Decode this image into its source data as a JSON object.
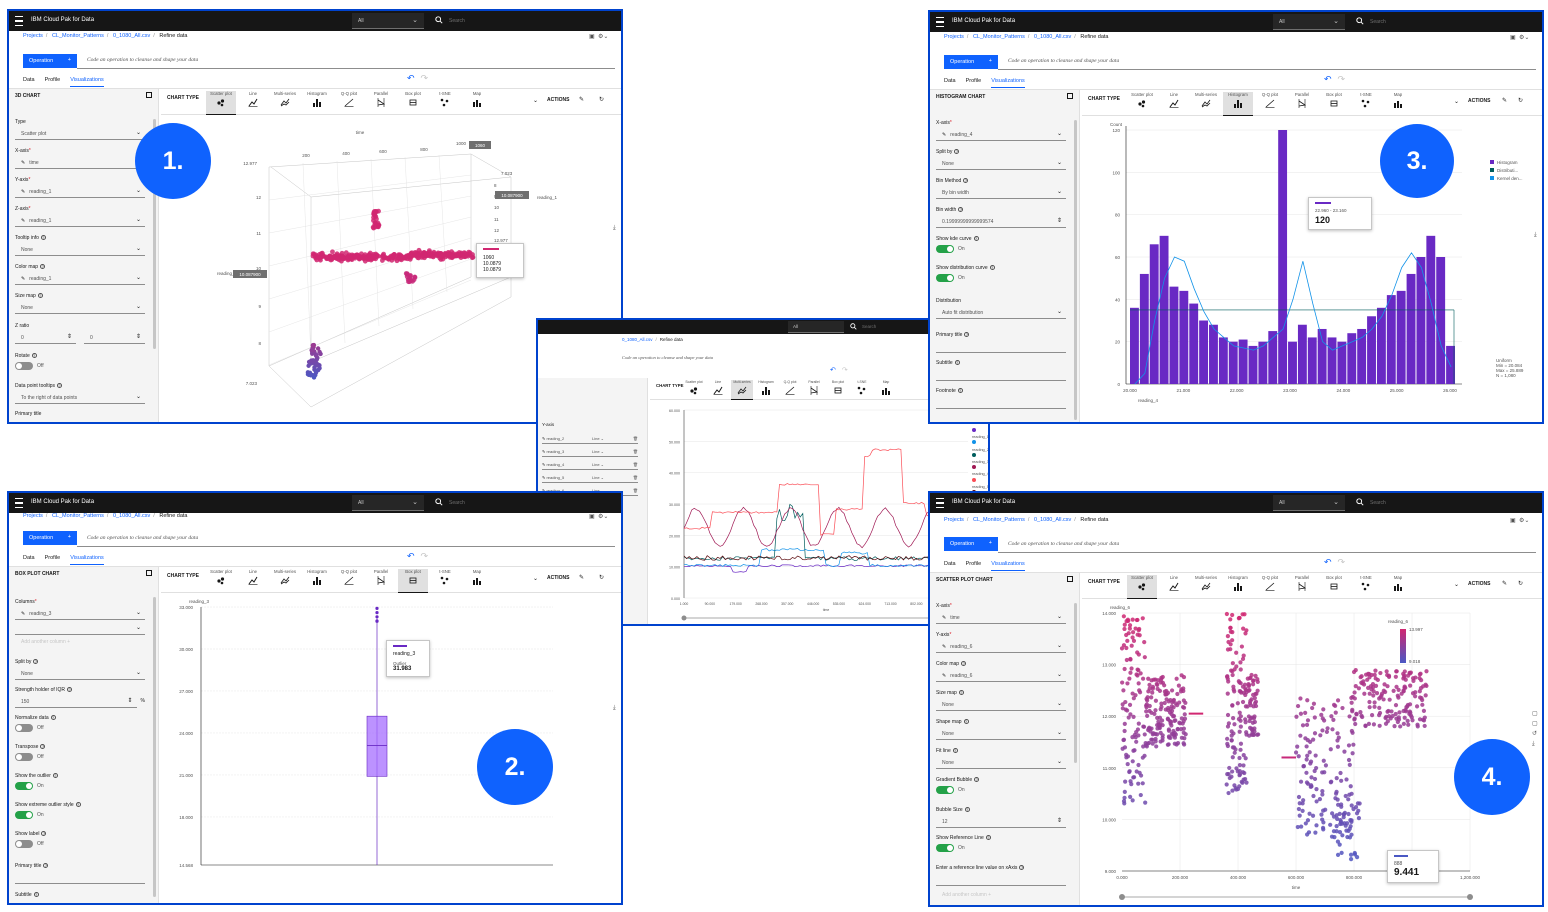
{
  "common": {
    "brand": "IBM Cloud Pak for Data",
    "search_scope": "All",
    "search_placeholder": "Search",
    "breadcrumb": [
      "Projects",
      "CL_Monitor_Patterns",
      "0_1080_All.csv",
      "Refine data"
    ],
    "operation_label": "Operation",
    "operation_plus": "+",
    "operation_hint": "Code an operation to cleanse and shape your data",
    "tabs": [
      "Data",
      "Profile",
      "Visualizations"
    ],
    "chart_type_label": "CHART TYPE",
    "actions_label": "ACTIONS",
    "chart_types": [
      "Scatter plot",
      "Line",
      "Multi-series",
      "Histogram",
      "Q-Q plot",
      "Parallel",
      "Box plot",
      "t-SNE",
      "Map"
    ],
    "toggle_on": "On",
    "toggle_off": "Off"
  },
  "colors": {
    "accent": "#0f62fe",
    "pink": "#d12771",
    "purple": "#6929c4",
    "toggle_on": "#24a148",
    "badge": "#0f62fe"
  },
  "panel1": {
    "title": "3D CHART",
    "badge": "1.",
    "fields": [
      {
        "label": "Type",
        "value": "Scatter plot",
        "kind": "select"
      },
      {
        "label": "X-axis",
        "req": true,
        "value": "time",
        "kind": "column"
      },
      {
        "label": "Y-axis",
        "req": true,
        "value": "reading_1",
        "kind": "column"
      },
      {
        "label": "Z-axis",
        "req": true,
        "value": "reading_1",
        "kind": "column"
      },
      {
        "label": "Tooltip info",
        "q": true,
        "value": "None",
        "kind": "select"
      },
      {
        "label": "Color map",
        "q": true,
        "value": "reading_1",
        "kind": "column"
      },
      {
        "label": "Size map",
        "q": true,
        "value": "None",
        "kind": "select"
      }
    ],
    "zratio_label": "Z ratio",
    "zratio": [
      "0",
      "0"
    ],
    "rotate_label": "Rotate",
    "rotate_state": "Off",
    "tooltips_label": "Data point tooltips",
    "tooltips_value": "To the right of data points",
    "primary_title_label": "Primary title",
    "axis_time": "time",
    "axis_reading_1": "reading_1",
    "axis_reading_1b": "reading_1",
    "x_ticks": [
      "200",
      "400",
      "600",
      "800",
      "1000"
    ],
    "y_ticks": [
      "12.977",
      "12",
      "11",
      "10",
      "9",
      "8",
      "7.023"
    ],
    "z_ticks": [
      "7.023",
      "8",
      "9",
      "10",
      "11",
      "12",
      "12.977"
    ],
    "hl_x": "1060",
    "hl_y": "10.087900",
    "hl_z": "10.087900",
    "tooltip": [
      "1060",
      "10.0879",
      "10.0879"
    ],
    "legend": [
      "12.9775",
      "10.0879",
      "7.0234"
    ]
  },
  "panel2": {
    "title": "BOX PLOT CHART",
    "badge": "2.",
    "columns_label": "Columns",
    "column_value": "reading_3",
    "add_column": "Add another column",
    "split_label": "Split by",
    "split_value": "None",
    "iqr_label": "Strength holder of IQR",
    "iqr_value": "150",
    "iqr_unit": "%",
    "toggles": [
      {
        "label": "Normalize data",
        "state": "Off"
      },
      {
        "label": "Transpose",
        "state": "Off"
      },
      {
        "label": "Show the outlier",
        "state": "On"
      },
      {
        "label": "Show extreme outlier style",
        "state": "On"
      },
      {
        "label": "Show label",
        "state": "Off"
      }
    ],
    "primary_title_label": "Primary title",
    "subtitle_label": "Subtitle",
    "ylabel": "reading_3",
    "y_ticks": [
      "33.000",
      "30.000",
      "27.000",
      "24.000",
      "21.000",
      "18.000",
      "14.568"
    ],
    "tooltip_series": "reading_3",
    "tooltip_kind": "Outlier",
    "tooltip_value": "31.983"
  },
  "panel3": {
    "title": "HISTOGRAM CHART",
    "badge": "3.",
    "fields": [
      {
        "label": "X-axis",
        "req": true,
        "value": "reading_4",
        "kind": "column"
      },
      {
        "label": "Split by",
        "q": true,
        "value": "None",
        "kind": "select"
      },
      {
        "label": "Bin Method",
        "q": true,
        "value": "By bin width",
        "kind": "select"
      },
      {
        "label": "Bin width",
        "q": true,
        "value": "0.19999999999999574",
        "kind": "number"
      }
    ],
    "toggles": [
      {
        "label": "Show kde curve",
        "state": "On"
      },
      {
        "label": "Show distribution curve",
        "state": "On"
      }
    ],
    "dist_label": "Distribution",
    "dist_value": "Auto fit distribution",
    "primary_title_label": "Primary title",
    "subtitle_label": "Subtitle",
    "footnote_label": "Footnote",
    "ylabel": "Count",
    "xlabel": "reading_4",
    "y_ticks": [
      "120",
      "100",
      "80",
      "60",
      "40",
      "20",
      "0"
    ],
    "x_ticks": [
      "20.000",
      "21.000",
      "22.000",
      "23.000",
      "24.000",
      "25.000",
      "26.000"
    ],
    "legend": [
      "Histogram",
      "Distributi...",
      "Kernel den..."
    ],
    "tooltip_range": "22.960 - 23.160",
    "tooltip_value": "120",
    "dist_box": [
      "Uniform",
      "Min = 20.084",
      "Max = 25.889",
      "N = 1,080"
    ]
  },
  "panel4": {
    "title": "SCATTER PLOT CHART",
    "badge": "4.",
    "fields": [
      {
        "label": "X-axis",
        "req": true,
        "value": "time",
        "kind": "column"
      },
      {
        "label": "Y-axis",
        "req": true,
        "value": "reading_6",
        "kind": "column"
      },
      {
        "label": "Color map",
        "q": true,
        "value": "reading_6",
        "kind": "column"
      },
      {
        "label": "Size map",
        "q": true,
        "value": "None",
        "kind": "select"
      },
      {
        "label": "Shape map",
        "q": true,
        "value": "None",
        "kind": "select"
      },
      {
        "label": "Fit line",
        "q": true,
        "value": "None",
        "kind": "select"
      }
    ],
    "toggles": [
      {
        "label": "Gradient Bubble",
        "state": "On"
      }
    ],
    "bubble_label": "Bubble Size",
    "bubble_value": "12",
    "toggles2": [
      {
        "label": "Show Reference Line",
        "state": "On"
      }
    ],
    "ref_label": "Enter a reference line value on xAxis",
    "add_column": "Add another column",
    "ylabel": "reading_6",
    "xlabel": "time",
    "y_ticks": [
      "14.000",
      "13.000",
      "12.000",
      "11.000",
      "10.000",
      "9.000"
    ],
    "x_ticks": [
      "0.000",
      "200.000",
      "400.000",
      "600.000",
      "800.000",
      "1,000.000",
      "1,200.000"
    ],
    "legend_title": "reading_6",
    "legend": [
      "13.997",
      "9.018"
    ],
    "tooltip_label": "888",
    "tooltip_value": "9.441"
  },
  "panel5": {
    "breadcrumb": [
      "0_1080_All.csv",
      "Refine data"
    ],
    "hint": "Code an operation to cleanse and shape your data",
    "yaxis_label": "Y-axis",
    "series_rows": [
      "reading_2",
      "reading_3",
      "reading_4",
      "reading_5",
      "reading_6"
    ],
    "row_type": "Line",
    "legend": [
      "reading_1",
      "reading_2",
      "reading_3",
      "reading_4",
      "reading_5",
      "reading_6"
    ],
    "legend_colors": [
      "#6929c4",
      "#1192e8",
      "#005d5d",
      "#9f1853",
      "#fa4d56",
      "#570408"
    ],
    "y_ticks": [
      "60.000",
      "50.000",
      "40.000",
      "30.000",
      "20.000",
      "10.000",
      "0.000"
    ],
    "x_ticks": [
      "1.000",
      "90.000",
      "179.000",
      "268.000",
      "357.000",
      "446.000",
      "535.000",
      "624.000",
      "713.000",
      "802.000",
      "891.000",
      "980.000"
    ],
    "xlabel": "time"
  }
}
